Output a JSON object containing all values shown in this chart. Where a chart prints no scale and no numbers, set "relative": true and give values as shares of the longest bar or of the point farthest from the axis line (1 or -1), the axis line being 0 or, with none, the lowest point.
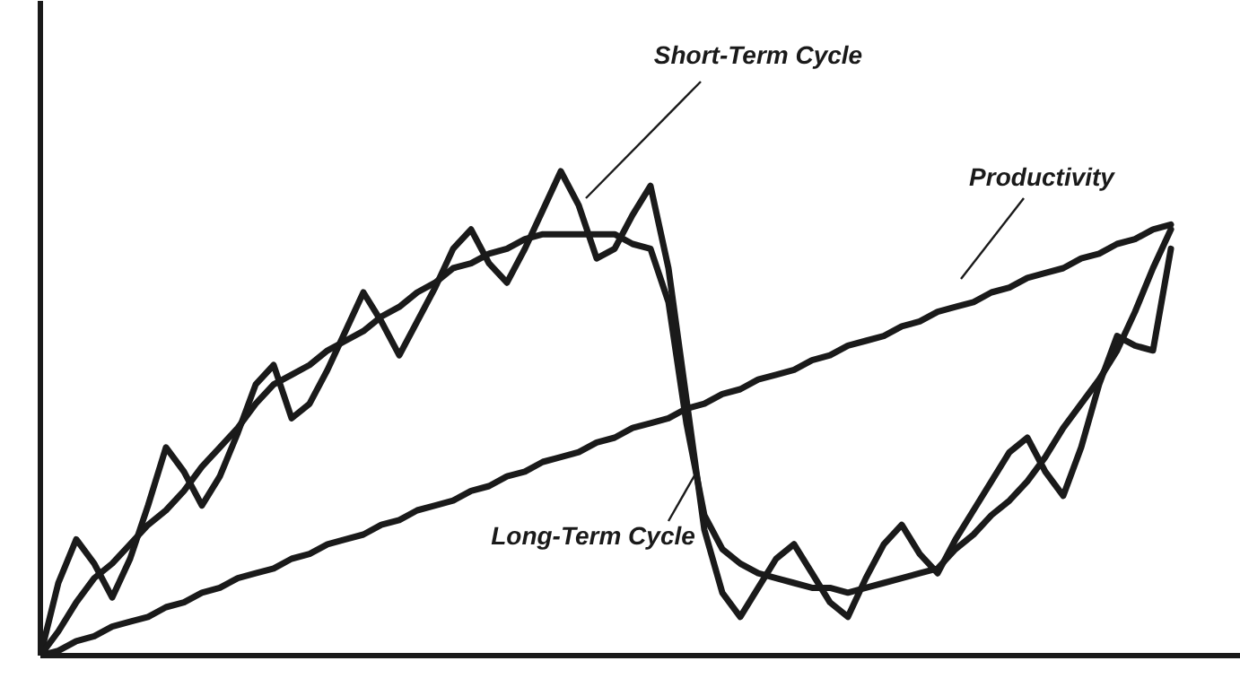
{
  "chart_data": {
    "type": "line",
    "relative": true,
    "categories": [
      null,
      null,
      null,
      null,
      null,
      null,
      null,
      null,
      null,
      null,
      null,
      null,
      null,
      null,
      null,
      null,
      null,
      null,
      null,
      null,
      null,
      null,
      null,
      null,
      null,
      null,
      null,
      null,
      null,
      null,
      null,
      null,
      null,
      null,
      null,
      null,
      null,
      null,
      null,
      null,
      null,
      null,
      null,
      null,
      null,
      null,
      null,
      null,
      null,
      null,
      null,
      null,
      null,
      null,
      null,
      null,
      null,
      null,
      null,
      null,
      null,
      null,
      null,
      null
    ],
    "series": [
      {
        "name": "Short-Term Cycle",
        "color": "#1a1a1a",
        "values": [
          0,
          0.15,
          0.24,
          0.19,
          0.12,
          0.2,
          0.31,
          0.43,
          0.38,
          0.31,
          0.37,
          0.46,
          0.56,
          0.6,
          0.49,
          0.52,
          0.59,
          0.67,
          0.75,
          0.69,
          0.62,
          0.69,
          0.76,
          0.84,
          0.88,
          0.81,
          0.77,
          0.84,
          0.92,
          1,
          0.93,
          0.82,
          0.84,
          0.91,
          0.97,
          0.8,
          0.53,
          0.26,
          0.13,
          0.08,
          0.14,
          0.2,
          0.23,
          0.17,
          0.11,
          0.08,
          0.16,
          0.23,
          0.27,
          0.21,
          0.17,
          0.24,
          0.3,
          0.36,
          0.42,
          0.45,
          0.38,
          0.33,
          0.43,
          0.56,
          0.66,
          0.64,
          0.63,
          0.84
        ]
      },
      {
        "name": "Productivity",
        "color": "#1a1a1a",
        "values": [
          0,
          0.01,
          0.03,
          0.04,
          0.06,
          0.07,
          0.08,
          0.1,
          0.11,
          0.13,
          0.14,
          0.16,
          0.17,
          0.18,
          0.2,
          0.21,
          0.23,
          0.24,
          0.25,
          0.27,
          0.28,
          0.3,
          0.31,
          0.32,
          0.34,
          0.35,
          0.37,
          0.38,
          0.4,
          0.41,
          0.42,
          0.44,
          0.45,
          0.47,
          0.48,
          0.49,
          0.51,
          0.52,
          0.54,
          0.55,
          0.57,
          0.58,
          0.59,
          0.61,
          0.62,
          0.64,
          0.65,
          0.66,
          0.68,
          0.69,
          0.71,
          0.72,
          0.73,
          0.75,
          0.76,
          0.78,
          0.79,
          0.8,
          0.82,
          0.83,
          0.85,
          0.86,
          0.88,
          0.89
        ]
      },
      {
        "name": "Long-Term Cycle",
        "color": "#1a1a1a",
        "values": [
          0,
          0.05,
          0.11,
          0.16,
          0.19,
          0.23,
          0.27,
          0.3,
          0.34,
          0.39,
          0.43,
          0.47,
          0.52,
          0.56,
          0.58,
          0.6,
          0.63,
          0.65,
          0.67,
          0.7,
          0.72,
          0.75,
          0.77,
          0.8,
          0.81,
          0.83,
          0.84,
          0.86,
          0.87,
          0.87,
          0.87,
          0.87,
          0.87,
          0.85,
          0.84,
          0.73,
          0.48,
          0.29,
          0.22,
          0.19,
          0.17,
          0.16,
          0.15,
          0.14,
          0.14,
          0.13,
          0.14,
          0.15,
          0.16,
          0.17,
          0.18,
          0.22,
          0.25,
          0.29,
          0.32,
          0.36,
          0.41,
          0.47,
          0.52,
          0.57,
          0.63,
          0.71,
          0.8,
          0.88
        ]
      }
    ]
  }
}
